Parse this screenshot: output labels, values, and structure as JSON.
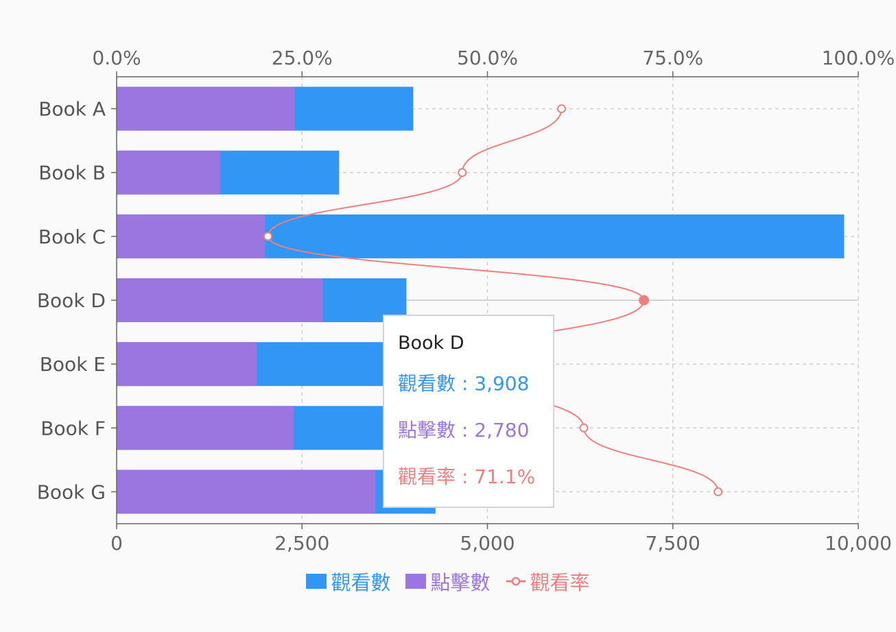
{
  "chart_data": {
    "type": "bar",
    "orientation": "horizontal",
    "stacked": false,
    "categories": [
      "Book A",
      "Book B",
      "Book C",
      "Book D",
      "Book E",
      "Book F",
      "Book G"
    ],
    "series": [
      {
        "name": "觀看數",
        "type": "bar",
        "axis": "bottom",
        "color": "#3296f5",
        "values": [
          4000,
          3000,
          9810,
          3908,
          4800,
          3800,
          4300
        ]
      },
      {
        "name": "點擊數",
        "type": "bar",
        "axis": "bottom",
        "color": "#9b76e0",
        "values": [
          2400,
          1398,
          2000,
          2780,
          1890,
          2390,
          3490
        ]
      },
      {
        "name": "觀看率",
        "type": "line",
        "axis": "top",
        "color": "#ee7f7f",
        "values": [
          60.0,
          46.6,
          20.4,
          71.1,
          45.0,
          63.0,
          81.1
        ]
      }
    ],
    "x_bottom": {
      "range": [
        0,
        10000
      ],
      "ticks": [
        "0",
        "2,500",
        "5,000",
        "7,500",
        "10,000"
      ]
    },
    "x_top": {
      "range": [
        0,
        100
      ],
      "ticks": [
        "0.0%",
        "25.0%",
        "50.0%",
        "75.0%",
        "100.0%"
      ]
    },
    "grid": true,
    "legend_position": "bottom",
    "highlighted_category": "Book D",
    "tooltip": {
      "title": "Book D",
      "rows": [
        {
          "label": "觀看數",
          "value": "3,908",
          "color": "#3296f5"
        },
        {
          "label": "點擊數",
          "value": "2,780",
          "color": "#9b76e0"
        },
        {
          "label": "觀看率",
          "value": "71.1%",
          "color": "#ee7f7f"
        }
      ]
    }
  }
}
